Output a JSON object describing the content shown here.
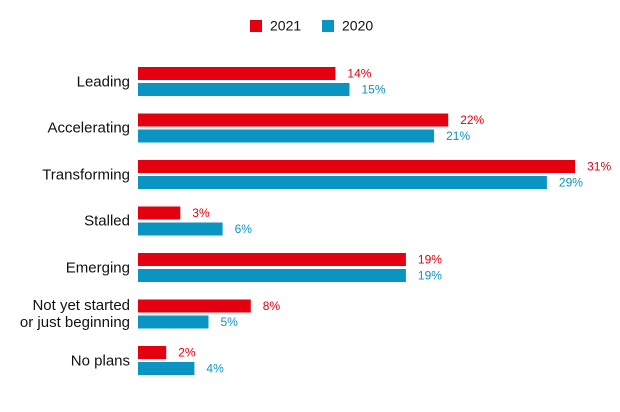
{
  "chart_data": {
    "type": "hbar",
    "categories": [
      "Leading",
      "Accelerating",
      "Transforming",
      "Stalled",
      "Emerging",
      "Not yet started\nor just beginning",
      "No plans"
    ],
    "series": [
      {
        "name": "2021",
        "color": "#e4000f",
        "values": [
          14,
          22,
          31,
          3,
          19,
          8,
          2
        ],
        "value_labels": [
          "14%",
          "22%",
          "31%",
          "3%",
          "19%",
          "8%",
          "2%"
        ]
      },
      {
        "name": "2020",
        "color": "#0a94c2",
        "values": [
          15,
          21,
          29,
          6,
          19,
          5,
          4
        ],
        "value_labels": [
          "15%",
          "21%",
          "29%",
          "6%",
          "19%",
          "5%",
          "4%"
        ]
      }
    ]
  }
}
